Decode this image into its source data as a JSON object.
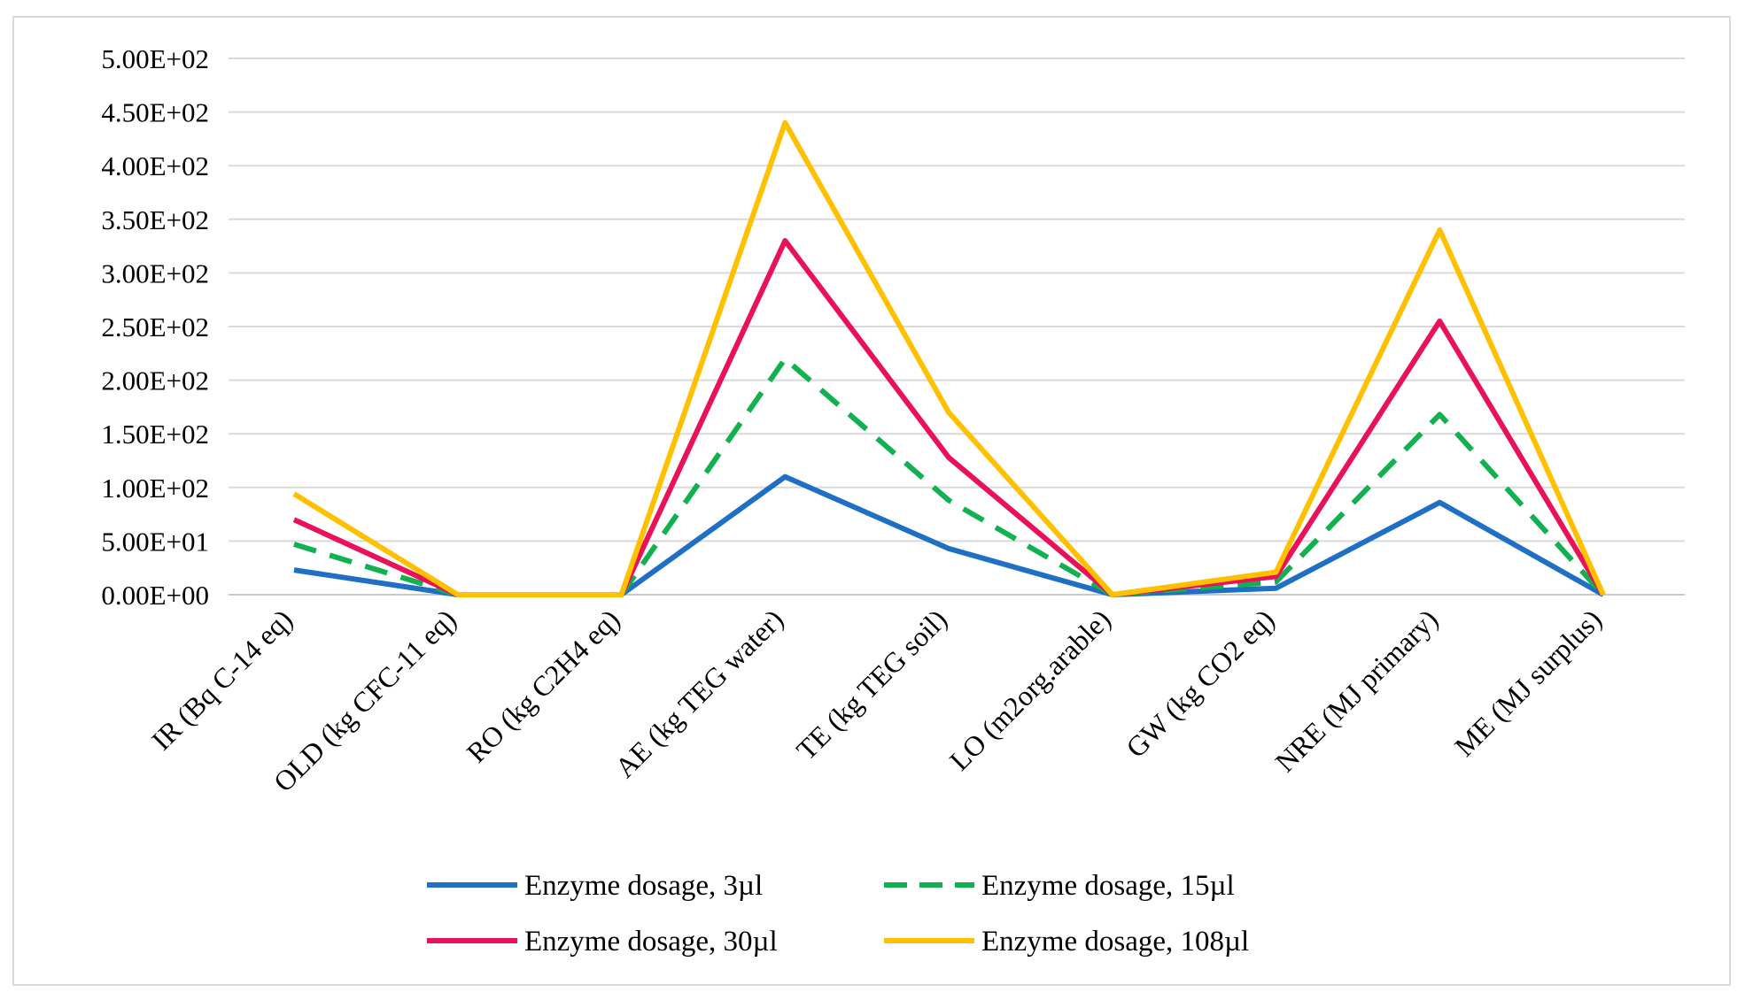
{
  "chart_data": {
    "type": "line",
    "title": "",
    "xlabel": "",
    "ylabel": "",
    "ylim": [
      0,
      500
    ],
    "yticks": [
      0,
      50,
      100,
      150,
      200,
      250,
      300,
      350,
      400,
      450,
      500
    ],
    "ytick_labels": [
      "0.00E+00",
      "5.00E+01",
      "1.00E+02",
      "1.50E+02",
      "2.00E+02",
      "2.50E+02",
      "3.00E+02",
      "3.50E+02",
      "4.00E+02",
      "4.50E+02",
      "5.00E+02"
    ],
    "grid": true,
    "legend_position": "bottom",
    "categories": [
      "IR (Bq C-14 eq)",
      "OLD (kg CFC-11 eq)",
      "RO (kg C2H4 eq)",
      "AE (kg TEG water)",
      "TE (kg TEG soil)",
      "LO (m2org.arable)",
      "GW (kg CO2 eq)",
      "NRE (MJ primary)",
      "ME (MJ surplus)"
    ],
    "series": [
      {
        "name": "Enzyme dosage, 3µl",
        "color": "#1f6fc4",
        "dash": "solid",
        "values": [
          23,
          0,
          0,
          110,
          43,
          0,
          6,
          86,
          0
        ]
      },
      {
        "name": "Enzyme dosage, 15µl",
        "color": "#12b050",
        "dash": "dashed",
        "values": [
          47,
          0,
          0,
          220,
          88,
          0,
          12,
          168,
          0
        ]
      },
      {
        "name": "Enzyme dosage, 30µl",
        "color": "#e8115a",
        "dash": "solid",
        "values": [
          70,
          0,
          0,
          330,
          128,
          0,
          17,
          255,
          0
        ]
      },
      {
        "name": "Enzyme dosage, 108µl",
        "color": "#ffc000",
        "dash": "solid",
        "values": [
          94,
          0,
          0,
          440,
          170,
          0,
          21,
          340,
          0
        ]
      }
    ]
  }
}
